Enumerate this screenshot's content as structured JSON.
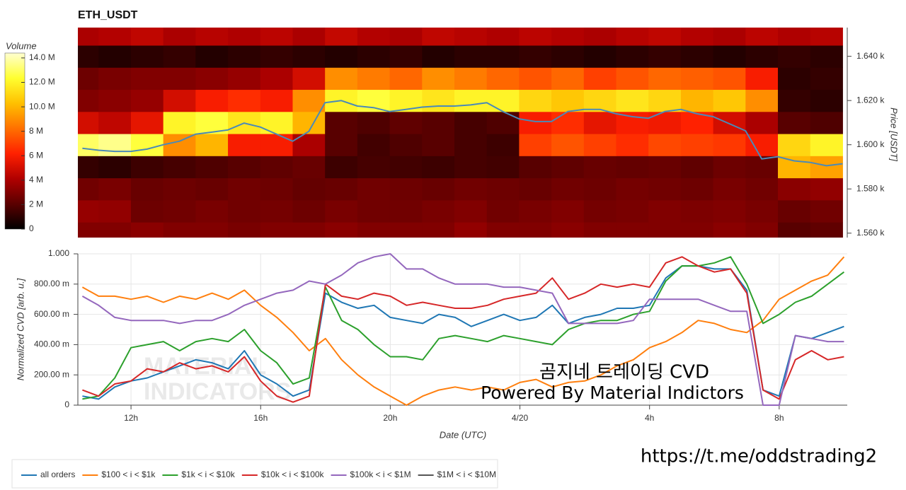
{
  "chart_data": [
    {
      "type": "heatmap",
      "title": "ETH_USDT",
      "colorbar_label": "Volume",
      "clim": [
        0,
        14.4
      ],
      "colormap": [
        "#000000",
        "#5a0000",
        "#b00000",
        "#ff2000",
        "#ff7000",
        "#ffc000",
        "#ffff30",
        "#ffffd0"
      ],
      "colorbar_ticks": [
        0,
        {
          "value": 2,
          "label": "2 M"
        },
        {
          "value": 4,
          "label": "4 M"
        },
        {
          "value": 6,
          "label": "6 M"
        },
        {
          "value": 8,
          "label": "8 M"
        },
        {
          "value": 10,
          "label": "10.0 M"
        },
        {
          "value": 12,
          "label": "12.0 M"
        },
        {
          "value": 14,
          "label": "14.0 M"
        }
      ],
      "ylabel": "Price [USDT]",
      "ylim": [
        1558,
        1653
      ],
      "yticks": [
        {
          "value": 1560,
          "label": "1.560 k"
        },
        {
          "value": 1580,
          "label": "1.580 k"
        },
        {
          "value": 1600,
          "label": "1.600 k"
        },
        {
          "value": 1620,
          "label": "1.620 k"
        },
        {
          "value": 1640,
          "label": "1.640 k"
        }
      ],
      "xlim": [
        10.36,
        34.1
      ],
      "x_bins": [
        10,
        11,
        12,
        13,
        14,
        15,
        16,
        17,
        18,
        19,
        20,
        21,
        22,
        23,
        24,
        25,
        26,
        27,
        28,
        29,
        30,
        31,
        32,
        33,
        34
      ],
      "y_bins": [
        1555,
        1565,
        1575,
        1585,
        1595,
        1605,
        1615,
        1625,
        1635,
        1645,
        1655
      ],
      "z": [
        [
          3,
          3,
          3.2,
          3,
          3,
          2.8,
          3,
          3,
          3.2,
          3,
          3,
          3,
          3.4,
          3,
          3,
          3.2,
          3,
          3,
          3,
          3,
          3.2,
          3,
          2,
          2.2
        ],
        [
          3.5,
          3.4,
          2.5,
          2.6,
          2.8,
          2.6,
          2.7,
          2.5,
          2.8,
          2.6,
          2.6,
          2.8,
          3,
          2.6,
          2.8,
          3,
          2.7,
          2.8,
          3,
          2.9,
          3,
          2.8,
          2.4,
          2.6
        ],
        [
          2.6,
          2.8,
          2.4,
          2.5,
          2.4,
          2.6,
          2.5,
          2.3,
          2.4,
          2.6,
          2.5,
          2.4,
          2.6,
          2.5,
          2.4,
          2.6,
          2.5,
          2.7,
          2.6,
          2.5,
          2.8,
          2.6,
          3.2,
          3.4
        ],
        [
          1.2,
          1,
          1.4,
          1.6,
          1.8,
          2,
          2.2,
          2.4,
          1.4,
          1.6,
          1.5,
          1.4,
          1.6,
          1.5,
          2,
          2.2,
          2.4,
          2.3,
          2.4,
          2.2,
          2.5,
          2.4,
          10,
          9.5
        ],
        [
          13,
          13.5,
          12.5,
          9,
          10,
          6,
          6,
          4,
          2,
          1.5,
          1.8,
          2,
          1.6,
          1.4,
          7,
          7.5,
          7,
          6.5,
          7.2,
          7,
          6.8,
          6,
          11,
          12
        ],
        [
          5,
          4.5,
          5.5,
          12,
          12.5,
          11.5,
          12,
          10,
          2,
          1.8,
          2.2,
          2,
          1.6,
          1.8,
          6,
          6.5,
          5.5,
          6,
          5.8,
          6.2,
          5,
          4,
          2,
          1.8
        ],
        [
          3,
          3.2,
          3.5,
          5,
          6,
          6.5,
          6,
          9,
          12,
          12.5,
          12,
          11.5,
          12,
          12,
          11,
          10.5,
          11,
          11.5,
          11,
          10,
          10.5,
          9,
          1.2,
          1
        ],
        [
          2.5,
          2.8,
          3,
          3,
          3.2,
          3.5,
          4,
          5,
          9,
          8.5,
          8,
          9,
          8.5,
          8,
          7.5,
          8,
          7,
          7.5,
          8,
          7.8,
          7.5,
          6,
          1,
          1.2
        ],
        [
          1,
          0.8,
          1,
          1.2,
          0.8,
          1,
          1.2,
          1,
          0.8,
          1,
          1.2,
          0.8,
          1,
          1,
          1.2,
          1,
          0.8,
          1,
          1.2,
          1,
          0.8,
          1,
          1.2,
          1
        ],
        [
          4,
          4.2,
          4.5,
          4,
          4.3,
          4.1,
          4.4,
          4,
          4.6,
          4.2,
          4,
          4.5,
          4.3,
          4.1,
          4.4,
          4.2,
          4,
          4.3,
          4.5,
          4.2,
          4,
          4.4,
          4.1,
          4.3
        ]
      ],
      "x": [
        10.5,
        11,
        11.5,
        12,
        12.5,
        13,
        13.5,
        14,
        14.5,
        15,
        15.5,
        16,
        16.5,
        17,
        17.5,
        18,
        18.5,
        19,
        19.5,
        20,
        20.5,
        21,
        21.5,
        22,
        22.5,
        23,
        23.5,
        24,
        24.5,
        25,
        25.5,
        26,
        26.5,
        27,
        27.5,
        28,
        28.5,
        29,
        29.5,
        30,
        30.5,
        31,
        31.5,
        32,
        32.5,
        33,
        33.5,
        34
      ],
      "price_color": "#4a8ab8",
      "price": [
        1598.4,
        1597.5,
        1597,
        1597,
        1598,
        1600,
        1601.6,
        1604.8,
        1605.7,
        1606.7,
        1609.8,
        1608,
        1604.8,
        1601.6,
        1606,
        1619,
        1620,
        1617.5,
        1616.8,
        1615,
        1616,
        1617,
        1617.5,
        1617.5,
        1618,
        1619,
        1615,
        1611.7,
        1610.5,
        1610.5,
        1615,
        1616,
        1616,
        1614,
        1612.7,
        1612,
        1615,
        1616,
        1614,
        1612.7,
        1609.5,
        1606.3,
        1593.6,
        1594.6,
        1592.7,
        1592,
        1590.5,
        1591.4
      ]
    },
    {
      "type": "line",
      "ylabel": "Normalized CVD [arb. u.]",
      "xlabel": "Date (UTC)",
      "xlim": [
        10.36,
        34.1
      ],
      "xticks": [
        {
          "value": 12,
          "label": "12h"
        },
        {
          "value": 16,
          "label": "16h"
        },
        {
          "value": 20,
          "label": "20h"
        },
        {
          "value": 24,
          "label": "4/20"
        },
        {
          "value": 28,
          "label": "4h"
        },
        {
          "value": 32,
          "label": "8h"
        }
      ],
      "ylim": [
        0,
        1
      ],
      "yticks": [
        0,
        {
          "value": 0.2,
          "label": "200.00 m"
        },
        {
          "value": 0.4,
          "label": "400.00 m"
        },
        {
          "value": 0.6,
          "label": "600.00 m"
        },
        {
          "value": 0.8,
          "label": "800.00 m"
        },
        {
          "value": 1,
          "label": "1.000"
        }
      ],
      "grid": true,
      "legend": "bottom-left",
      "x": [
        10.5,
        11,
        11.5,
        12,
        12.5,
        13,
        13.5,
        14,
        14.5,
        15,
        15.5,
        16,
        16.5,
        17,
        17.5,
        18,
        18.5,
        19,
        19.5,
        20,
        20.5,
        21,
        21.5,
        22,
        22.5,
        23,
        23.5,
        24,
        24.5,
        25,
        25.5,
        26,
        26.5,
        27,
        27.5,
        28,
        28.5,
        29,
        29.5,
        30,
        30.5,
        31,
        31.5,
        32,
        32.5,
        33,
        33.5,
        34
      ],
      "series": [
        {
          "name": "all orders",
          "color": "#1f77b4",
          "values": [
            0.06,
            0.04,
            0.12,
            0.16,
            0.18,
            0.22,
            0.26,
            0.3,
            0.28,
            0.24,
            0.36,
            0.2,
            0.14,
            0.06,
            0.1,
            0.74,
            0.68,
            0.64,
            0.66,
            0.58,
            0.56,
            0.54,
            0.6,
            0.58,
            0.52,
            0.56,
            0.6,
            0.56,
            0.58,
            0.66,
            0.54,
            0.58,
            0.6,
            0.64,
            0.64,
            0.66,
            0.84,
            0.92,
            0.92,
            0.9,
            0.9,
            0.76,
            0.1,
            0.06,
            0.46,
            0.44,
            0.48,
            0.52
          ]
        },
        {
          "name": "$100 < i < $1k",
          "color": "#ff7f0e",
          "values": [
            0.78,
            0.72,
            0.72,
            0.7,
            0.72,
            0.68,
            0.72,
            0.7,
            0.74,
            0.7,
            0.76,
            0.66,
            0.58,
            0.48,
            0.36,
            0.44,
            0.3,
            0.2,
            0.12,
            0.06,
            0.0,
            0.06,
            0.1,
            0.12,
            0.1,
            0.12,
            0.1,
            0.15,
            0.17,
            0.12,
            0.15,
            0.16,
            0.2,
            0.26,
            0.3,
            0.38,
            0.42,
            0.48,
            0.56,
            0.54,
            0.5,
            0.48,
            0.56,
            0.7,
            0.76,
            0.82,
            0.86,
            0.98
          ]
        },
        {
          "name": "$1k < i < $10k",
          "color": "#2ca02c",
          "values": [
            0.04,
            0.06,
            0.18,
            0.38,
            0.4,
            0.42,
            0.36,
            0.42,
            0.44,
            0.42,
            0.5,
            0.36,
            0.28,
            0.14,
            0.18,
            0.78,
            0.56,
            0.5,
            0.4,
            0.32,
            0.32,
            0.3,
            0.44,
            0.46,
            0.44,
            0.42,
            0.46,
            0.44,
            0.42,
            0.4,
            0.5,
            0.54,
            0.56,
            0.56,
            0.6,
            0.62,
            0.82,
            0.92,
            0.92,
            0.94,
            0.98,
            0.8,
            0.54,
            0.6,
            0.68,
            0.72,
            0.8,
            0.88
          ]
        },
        {
          "name": "$10k < i < $100k",
          "color": "#d62728",
          "values": [
            0.1,
            0.06,
            0.14,
            0.16,
            0.24,
            0.22,
            0.28,
            0.24,
            0.26,
            0.22,
            0.32,
            0.16,
            0.06,
            0.02,
            0.06,
            0.8,
            0.72,
            0.7,
            0.74,
            0.72,
            0.66,
            0.68,
            0.66,
            0.64,
            0.64,
            0.66,
            0.7,
            0.72,
            0.74,
            0.84,
            0.7,
            0.74,
            0.8,
            0.78,
            0.8,
            0.78,
            0.94,
            0.98,
            0.92,
            0.88,
            0.9,
            0.74,
            0.1,
            0.04,
            0.3,
            0.36,
            0.3,
            0.32
          ]
        },
        {
          "name": "$100k < i < $1M",
          "color": "#9467bd",
          "values": [
            0.72,
            0.66,
            0.58,
            0.56,
            0.56,
            0.56,
            0.54,
            0.56,
            0.56,
            0.6,
            0.66,
            0.7,
            0.74,
            0.76,
            0.82,
            0.8,
            0.86,
            0.94,
            0.98,
            1.0,
            0.9,
            0.9,
            0.84,
            0.8,
            0.8,
            0.8,
            0.78,
            0.78,
            0.76,
            0.74,
            0.54,
            0.54,
            0.54,
            0.54,
            0.56,
            0.7,
            0.7,
            0.7,
            0.7,
            0.66,
            0.62,
            0.62,
            0.0,
            0.0,
            0.46,
            0.44,
            0.42,
            0.42
          ]
        },
        {
          "name": "$1M < i < $10M",
          "color": "#555555",
          "values": [
            null,
            null,
            null,
            null,
            null,
            null,
            null,
            null,
            null,
            null,
            null,
            null,
            null,
            null,
            null,
            null,
            null,
            null,
            null,
            null,
            null,
            null,
            null,
            null,
            null,
            null,
            null,
            null,
            null,
            null,
            null,
            null,
            null,
            null,
            null,
            null,
            null,
            null,
            null,
            null,
            null,
            null,
            null,
            null,
            null,
            null,
            null,
            null
          ]
        }
      ]
    }
  ],
  "watermark": [
    "MATERIAL",
    "INDICATORS"
  ],
  "annotations": [
    "곰지네 트레이딩 CVD",
    "Powered By Material Indictors",
    "https://t.me/oddstrading2"
  ]
}
